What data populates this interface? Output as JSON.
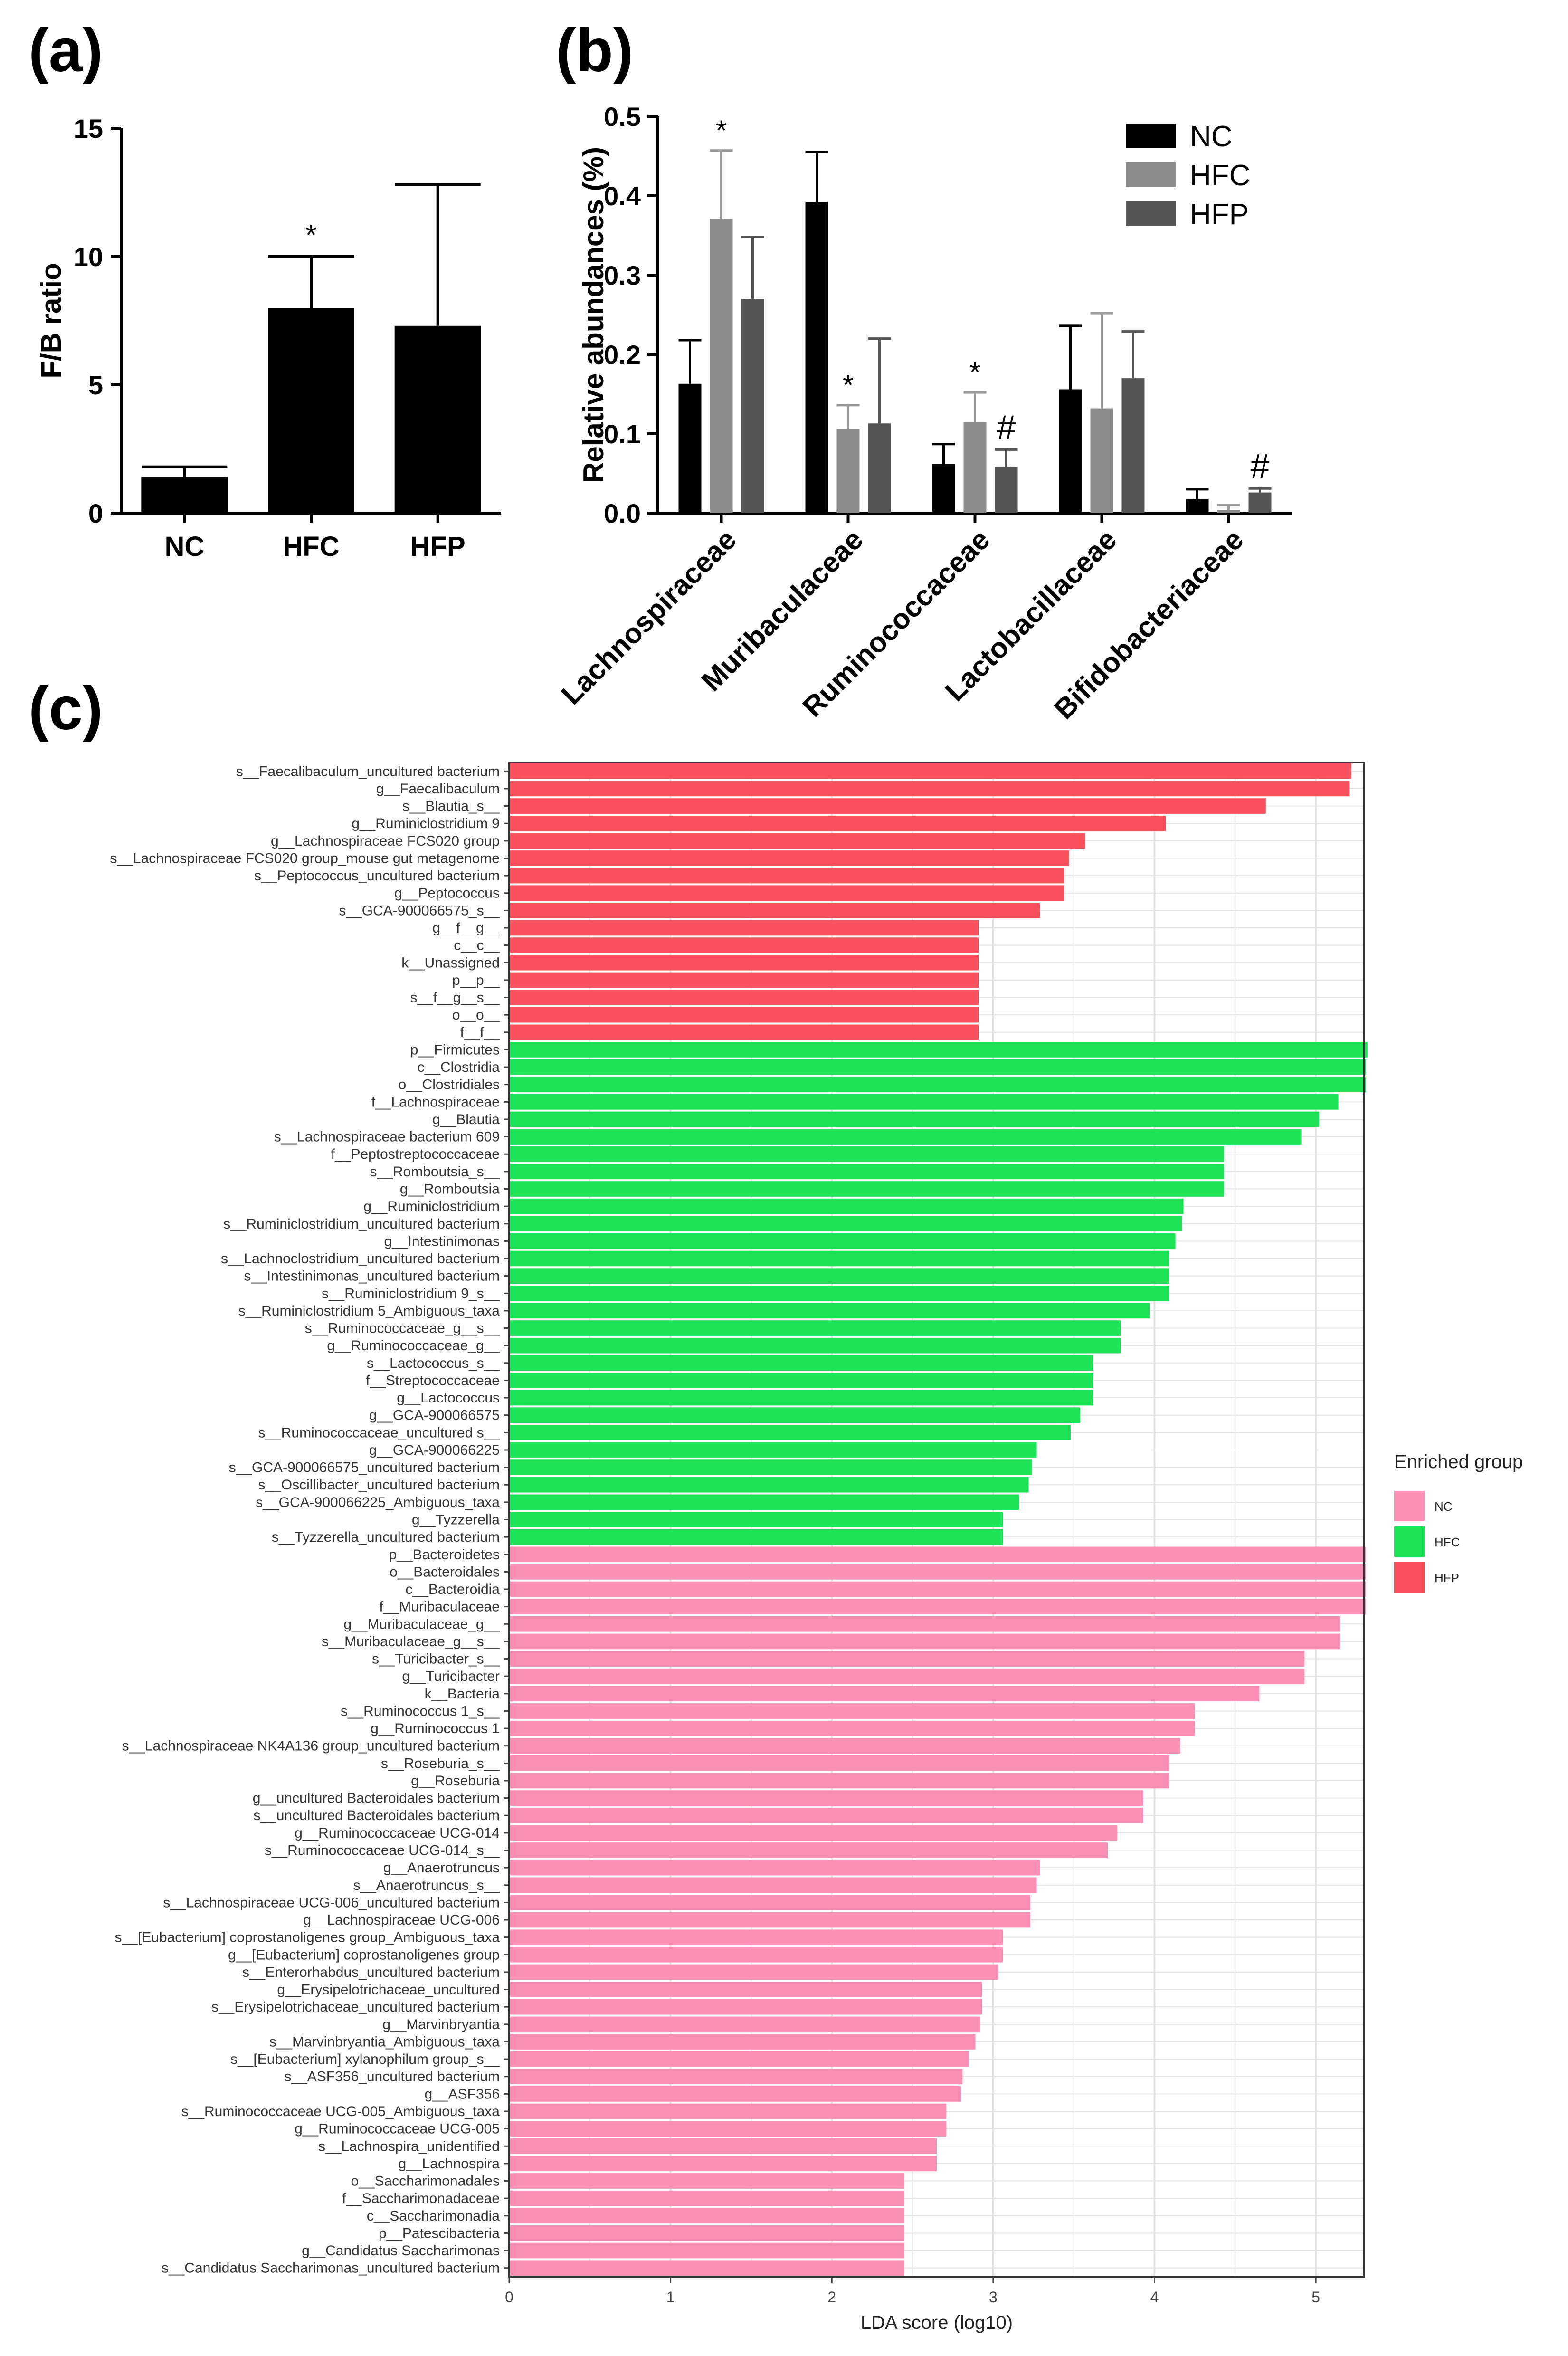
{
  "panel_labels": {
    "a": "(a)",
    "b": "(b)",
    "c": "(c)"
  },
  "colors": {
    "NC": "#000000",
    "HFC": "#8c8c8c",
    "HFP": "#555555",
    "lefse_NC": "#f98fb3",
    "lefse_HFC": "#1ee356",
    "lefse_HFP": "#f8505c",
    "grid": "#e3e3e3",
    "panel_border": "#333333"
  },
  "chart_data": [
    {
      "id": "a",
      "type": "bar",
      "ylabel": "F/B ratio",
      "ylim": [
        0,
        15
      ],
      "yticks": [
        "0",
        "5",
        "10",
        "15"
      ],
      "categories": [
        "NC",
        "HFC",
        "HFP"
      ],
      "values": [
        1.4,
        8.0,
        7.3
      ],
      "errors": [
        0.4,
        2.0,
        5.5
      ],
      "annotations": [
        "",
        "*",
        ""
      ]
    },
    {
      "id": "b",
      "type": "bar",
      "ylabel": "Relative abundances (%)",
      "ylim": [
        0,
        0.5
      ],
      "yticks": [
        "0.0",
        "0.1",
        "0.2",
        "0.3",
        "0.4",
        "0.5"
      ],
      "categories": [
        "Lachnospiraceae",
        "Muribaculaceae",
        "Ruminococcaceae",
        "Lactobacillaceae",
        "Bifidobacteriaceae"
      ],
      "legend": [
        "NC",
        "HFC",
        "HFP"
      ],
      "series": [
        {
          "name": "NC",
          "values": [
            0.163,
            0.392,
            0.062,
            0.156,
            0.018
          ],
          "errors": [
            0.055,
            0.063,
            0.025,
            0.08,
            0.012
          ],
          "annotations": [
            "",
            "",
            "",
            "",
            ""
          ]
        },
        {
          "name": "HFC",
          "values": [
            0.371,
            0.106,
            0.115,
            0.132,
            0.004
          ],
          "errors": [
            0.086,
            0.03,
            0.037,
            0.12,
            0.006
          ],
          "annotations": [
            "*",
            "*",
            "*",
            "",
            ""
          ]
        },
        {
          "name": "HFP",
          "values": [
            0.27,
            0.113,
            0.058,
            0.17,
            0.026
          ],
          "errors": [
            0.078,
            0.107,
            0.022,
            0.059,
            0.005
          ],
          "annotations": [
            "",
            "",
            "#",
            "",
            "#"
          ]
        }
      ]
    },
    {
      "id": "c",
      "type": "bar",
      "orientation": "horizontal",
      "xlabel": "LDA score (log10)",
      "xlim": [
        0,
        5.3
      ],
      "xticks": [
        "0",
        "1",
        "2",
        "3",
        "4",
        "5"
      ],
      "legend_title": "Enriched group",
      "legend": [
        "NC",
        "HFC",
        "HFP"
      ],
      "bars": [
        {
          "label": "s__Faecalibaculum_uncultured bacterium",
          "value": 5.22,
          "group": "HFP"
        },
        {
          "label": "g__Faecalibaculum",
          "value": 5.21,
          "group": "HFP"
        },
        {
          "label": "s__Blautia_s__",
          "value": 4.69,
          "group": "HFP"
        },
        {
          "label": "g__Ruminiclostridium 9",
          "value": 4.07,
          "group": "HFP"
        },
        {
          "label": "g__Lachnospiraceae FCS020 group",
          "value": 3.57,
          "group": "HFP"
        },
        {
          "label": "s__Lachnospiraceae FCS020 group_mouse gut metagenome",
          "value": 3.47,
          "group": "HFP"
        },
        {
          "label": "s__Peptococcus_uncultured bacterium",
          "value": 3.44,
          "group": "HFP"
        },
        {
          "label": "g__Peptococcus",
          "value": 3.44,
          "group": "HFP"
        },
        {
          "label": "s__GCA-900066575_s__",
          "value": 3.29,
          "group": "HFP"
        },
        {
          "label": "g__f__g__",
          "value": 2.91,
          "group": "HFP"
        },
        {
          "label": "c__c__",
          "value": 2.91,
          "group": "HFP"
        },
        {
          "label": "k__Unassigned",
          "value": 2.91,
          "group": "HFP"
        },
        {
          "label": "p__p__",
          "value": 2.91,
          "group": "HFP"
        },
        {
          "label": "s__f__g__s__",
          "value": 2.91,
          "group": "HFP"
        },
        {
          "label": "o__o__",
          "value": 2.91,
          "group": "HFP"
        },
        {
          "label": "f__f__",
          "value": 2.91,
          "group": "HFP"
        },
        {
          "label": "p__Firmicutes",
          "value": 5.32,
          "group": "HFC"
        },
        {
          "label": "c__Clostridia",
          "value": 5.31,
          "group": "HFC"
        },
        {
          "label": "o__Clostridiales",
          "value": 5.31,
          "group": "HFC"
        },
        {
          "label": "f__Lachnospiraceae",
          "value": 5.14,
          "group": "HFC"
        },
        {
          "label": "g__Blautia",
          "value": 5.02,
          "group": "HFC"
        },
        {
          "label": "s__Lachnospiraceae bacterium 609",
          "value": 4.91,
          "group": "HFC"
        },
        {
          "label": "f__Peptostreptococcaceae",
          "value": 4.43,
          "group": "HFC"
        },
        {
          "label": "s__Romboutsia_s__",
          "value": 4.43,
          "group": "HFC"
        },
        {
          "label": "g__Romboutsia",
          "value": 4.43,
          "group": "HFC"
        },
        {
          "label": "g__Ruminiclostridium",
          "value": 4.18,
          "group": "HFC"
        },
        {
          "label": "s__Ruminiclostridium_uncultured bacterium",
          "value": 4.17,
          "group": "HFC"
        },
        {
          "label": "g__Intestinimonas",
          "value": 4.13,
          "group": "HFC"
        },
        {
          "label": "s__Lachnoclostridium_uncultured bacterium",
          "value": 4.09,
          "group": "HFC"
        },
        {
          "label": "s__Intestinimonas_uncultured bacterium",
          "value": 4.09,
          "group": "HFC"
        },
        {
          "label": "s__Ruminiclostridium 9_s__",
          "value": 4.09,
          "group": "HFC"
        },
        {
          "label": "s__Ruminiclostridium 5_Ambiguous_taxa",
          "value": 3.97,
          "group": "HFC"
        },
        {
          "label": "s__Ruminococcaceae_g__s__",
          "value": 3.79,
          "group": "HFC"
        },
        {
          "label": "g__Ruminococcaceae_g__",
          "value": 3.79,
          "group": "HFC"
        },
        {
          "label": "s__Lactococcus_s__",
          "value": 3.62,
          "group": "HFC"
        },
        {
          "label": "f__Streptococcaceae",
          "value": 3.62,
          "group": "HFC"
        },
        {
          "label": "g__Lactococcus",
          "value": 3.62,
          "group": "HFC"
        },
        {
          "label": "g__GCA-900066575",
          "value": 3.54,
          "group": "HFC"
        },
        {
          "label": "s__Ruminococcaceae_uncultured s__",
          "value": 3.48,
          "group": "HFC"
        },
        {
          "label": "g__GCA-900066225",
          "value": 3.27,
          "group": "HFC"
        },
        {
          "label": "s__GCA-900066575_uncultured bacterium",
          "value": 3.24,
          "group": "HFC"
        },
        {
          "label": "s__Oscillibacter_uncultured bacterium",
          "value": 3.22,
          "group": "HFC"
        },
        {
          "label": "s__GCA-900066225_Ambiguous_taxa",
          "value": 3.16,
          "group": "HFC"
        },
        {
          "label": "g__Tyzzerella",
          "value": 3.06,
          "group": "HFC"
        },
        {
          "label": "s__Tyzzerella_uncultured bacterium",
          "value": 3.06,
          "group": "HFC"
        },
        {
          "label": "p__Bacteroidetes",
          "value": 5.31,
          "group": "NC"
        },
        {
          "label": "o__Bacteroidales",
          "value": 5.31,
          "group": "NC"
        },
        {
          "label": "c__Bacteroidia",
          "value": 5.31,
          "group": "NC"
        },
        {
          "label": "f__Muribaculaceae",
          "value": 5.31,
          "group": "NC"
        },
        {
          "label": "g__Muribaculaceae_g__",
          "value": 5.15,
          "group": "NC"
        },
        {
          "label": "s__Muribaculaceae_g__s__",
          "value": 5.15,
          "group": "NC"
        },
        {
          "label": "s__Turicibacter_s__",
          "value": 4.93,
          "group": "NC"
        },
        {
          "label": "g__Turicibacter",
          "value": 4.93,
          "group": "NC"
        },
        {
          "label": "k__Bacteria",
          "value": 4.65,
          "group": "NC"
        },
        {
          "label": "s__Ruminococcus 1_s__",
          "value": 4.25,
          "group": "NC"
        },
        {
          "label": "g__Ruminococcus 1",
          "value": 4.25,
          "group": "NC"
        },
        {
          "label": "s__Lachnospiraceae NK4A136 group_uncultured bacterium",
          "value": 4.16,
          "group": "NC"
        },
        {
          "label": "s__Roseburia_s__",
          "value": 4.09,
          "group": "NC"
        },
        {
          "label": "g__Roseburia",
          "value": 4.09,
          "group": "NC"
        },
        {
          "label": "g__uncultured Bacteroidales bacterium",
          "value": 3.93,
          "group": "NC"
        },
        {
          "label": "s__uncultured Bacteroidales bacterium",
          "value": 3.93,
          "group": "NC"
        },
        {
          "label": "g__Ruminococcaceae UCG-014",
          "value": 3.77,
          "group": "NC"
        },
        {
          "label": "s__Ruminococcaceae UCG-014_s__",
          "value": 3.71,
          "group": "NC"
        },
        {
          "label": "g__Anaerotruncus",
          "value": 3.29,
          "group": "NC"
        },
        {
          "label": "s__Anaerotruncus_s__",
          "value": 3.27,
          "group": "NC"
        },
        {
          "label": "s__Lachnospiraceae UCG-006_uncultured bacterium",
          "value": 3.23,
          "group": "NC"
        },
        {
          "label": "g__Lachnospiraceae UCG-006",
          "value": 3.23,
          "group": "NC"
        },
        {
          "label": "s__[Eubacterium] coprostanoligenes group_Ambiguous_taxa",
          "value": 3.06,
          "group": "NC"
        },
        {
          "label": "g__[Eubacterium] coprostanoligenes group",
          "value": 3.06,
          "group": "NC"
        },
        {
          "label": "s__Enterorhabdus_uncultured bacterium",
          "value": 3.03,
          "group": "NC"
        },
        {
          "label": "g__Erysipelotrichaceae_uncultured",
          "value": 2.93,
          "group": "NC"
        },
        {
          "label": "s__Erysipelotrichaceae_uncultured bacterium",
          "value": 2.93,
          "group": "NC"
        },
        {
          "label": "g__Marvinbryantia",
          "value": 2.92,
          "group": "NC"
        },
        {
          "label": "s__Marvinbryantia_Ambiguous_taxa",
          "value": 2.89,
          "group": "NC"
        },
        {
          "label": "s__[Eubacterium] xylanophilum group_s__",
          "value": 2.85,
          "group": "NC"
        },
        {
          "label": "s__ASF356_uncultured bacterium",
          "value": 2.81,
          "group": "NC"
        },
        {
          "label": "g__ASF356",
          "value": 2.8,
          "group": "NC"
        },
        {
          "label": "s__Ruminococcaceae UCG-005_Ambiguous_taxa",
          "value": 2.71,
          "group": "NC"
        },
        {
          "label": "g__Ruminococcaceae UCG-005",
          "value": 2.71,
          "group": "NC"
        },
        {
          "label": "s__Lachnospira_unidentified",
          "value": 2.65,
          "group": "NC"
        },
        {
          "label": "g__Lachnospira",
          "value": 2.65,
          "group": "NC"
        },
        {
          "label": "o__Saccharimonadales",
          "value": 2.45,
          "group": "NC"
        },
        {
          "label": "f__Saccharimonadaceae",
          "value": 2.45,
          "group": "NC"
        },
        {
          "label": "c__Saccharimonadia",
          "value": 2.45,
          "group": "NC"
        },
        {
          "label": "p__Patescibacteria",
          "value": 2.45,
          "group": "NC"
        },
        {
          "label": "g__Candidatus Saccharimonas",
          "value": 2.45,
          "group": "NC"
        },
        {
          "label": "s__Candidatus Saccharimonas_uncultured bacterium",
          "value": 2.45,
          "group": "NC"
        }
      ]
    }
  ]
}
